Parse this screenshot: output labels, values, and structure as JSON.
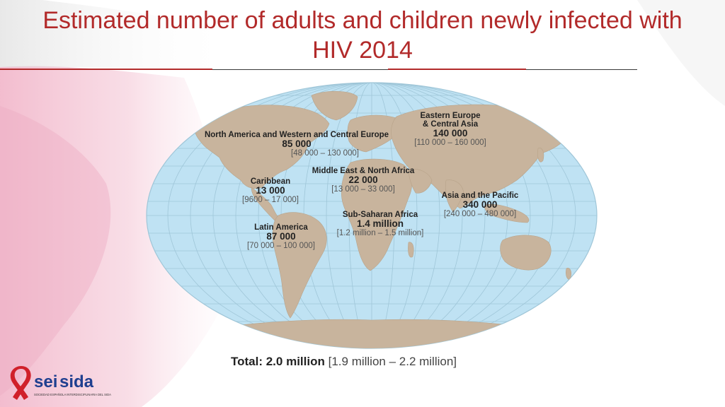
{
  "title": "Estimated number of adults and children newly infected with HIV 2014",
  "regions": [
    {
      "name": "North America and Western and Central Europe",
      "value": "85 000",
      "range": "[48 000 – 130 000]"
    },
    {
      "name_line1": "Eastern Europe",
      "name_line2": "& Central Asia",
      "value": "140 000",
      "range": "[110 000 – 160 000]"
    },
    {
      "name": "Caribbean",
      "value": "13 000",
      "range": "[9600 – 17 000]"
    },
    {
      "name": "Middle East & North Africa",
      "value": "22 000",
      "range": "[13 000 – 33 000]"
    },
    {
      "name": "Asia and the Pacific",
      "value": "340 000",
      "range": "[240 000 – 480 000]"
    },
    {
      "name": "Sub-Saharan Africa",
      "value": "1.4 million",
      "range": "[1.2 million – 1.5 million]"
    },
    {
      "name": "Latin America",
      "value": "87 000",
      "range": "[70 000 – 100 000]"
    }
  ],
  "total": {
    "label": "Total: 2.0 million",
    "range": "[1.9 million – 2.2 million]"
  },
  "logo": {
    "brand_a": "sei",
    "brand_b": "sida",
    "tagline": "SOCIEDAD ESPAÑOLA INTERDISCIPLINARIA DEL SIDA"
  },
  "colors": {
    "title": "#b22a2a",
    "ocean": "#bfe2f3",
    "land": "#c8b49d",
    "grid": "#9fc6d8",
    "brand_red": "#d0202a",
    "brand_blue": "#1f3f8f"
  }
}
